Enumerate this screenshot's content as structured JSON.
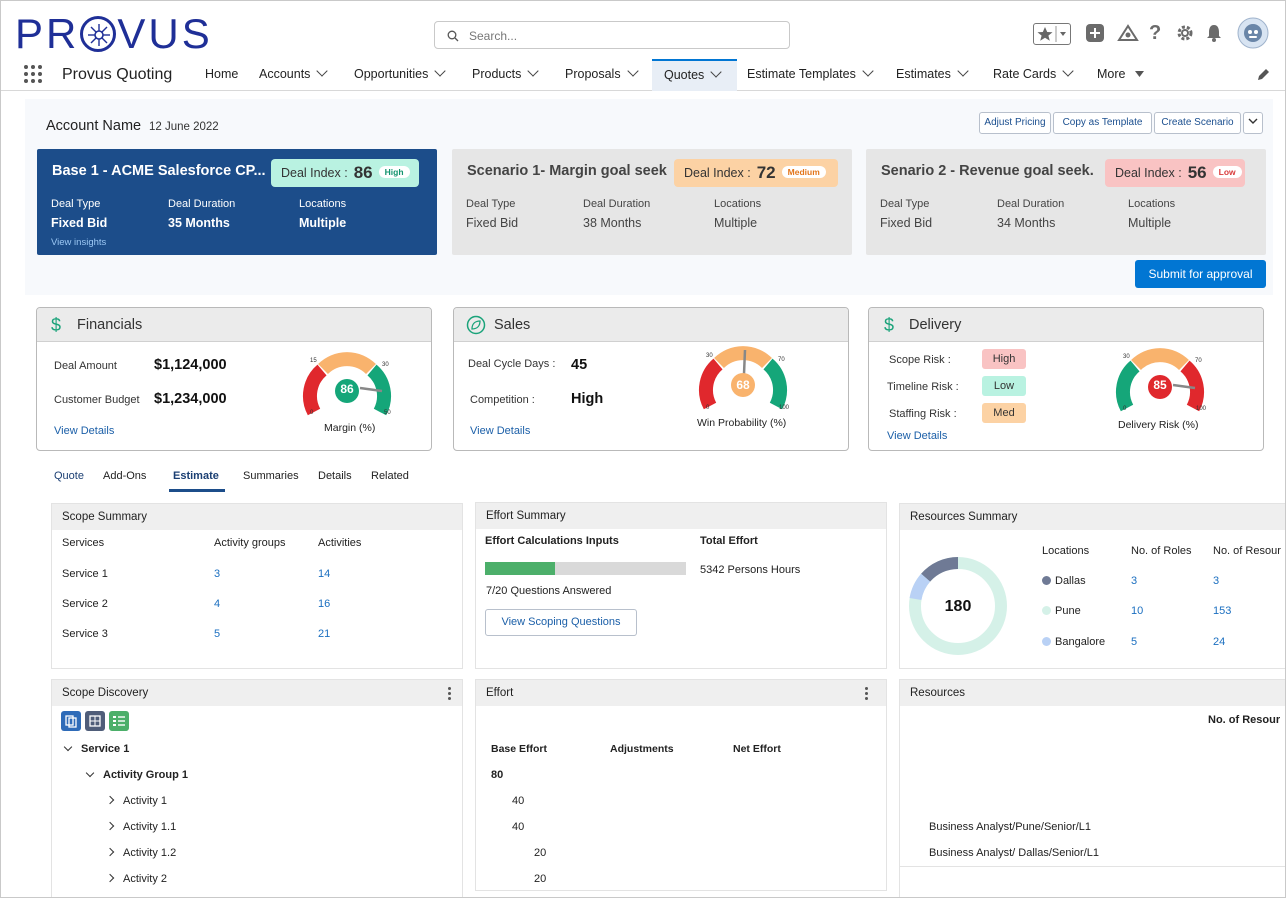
{
  "brand": {
    "logo_text_left": "PR",
    "logo_text_right": "VUS"
  },
  "search": {
    "placeholder": "Search..."
  },
  "nav": {
    "app_name": "Provus Quoting",
    "items": [
      "Home",
      "Accounts",
      "Opportunities",
      "Products",
      "Proposals",
      "Quotes",
      "Estimate Templates",
      "Estimates",
      "Rate Cards",
      "More"
    ],
    "active": "Quotes"
  },
  "account": {
    "title": "Account Name",
    "date": "12 June 2022",
    "buttons": [
      "Adjust Pricing",
      "Copy as Template",
      "Create Scenario"
    ]
  },
  "scenarios": [
    {
      "title": "Base 1 - ACME  Salesforce CP...",
      "deal_label": "Deal Index :",
      "deal_value": "86",
      "deal_tag": "High",
      "deal_type_label": "Deal Type",
      "deal_type": "Fixed Bid",
      "duration_label": "Deal Duration",
      "duration": "35 Months",
      "locations_label": "Locations",
      "locations": "Multiple",
      "link": "View insights"
    },
    {
      "title": "Scenario 1- Margin goal seek",
      "deal_label": "Deal Index :",
      "deal_value": "72",
      "deal_tag": "Medium",
      "deal_type_label": "Deal Type",
      "deal_type": "Fixed Bid",
      "duration_label": "Deal Duration",
      "duration": "38 Months",
      "locations_label": "Locations",
      "locations": "Multiple"
    },
    {
      "title": "Senario 2 - Revenue goal seek.",
      "deal_label": "Deal Index :",
      "deal_value": "56",
      "deal_tag": "Low",
      "deal_type_label": "Deal Type",
      "deal_type": "Fixed Bid",
      "duration_label": "Deal Duration",
      "duration": "34 Months",
      "locations_label": "Locations",
      "locations": "Multiple"
    }
  ],
  "submit_label": "Submit for approval",
  "financials": {
    "title": "Financials",
    "deal_amount_label": "Deal Amount",
    "deal_amount": "$1,124,000",
    "budget_label": "Customer Budget",
    "budget": "$1,234,000",
    "link": "View Details",
    "gauge": {
      "value": "86",
      "caption": "Margin (%)",
      "min": "0",
      "t1": "15",
      "t2": "30",
      "max": "50"
    }
  },
  "sales": {
    "title": "Sales",
    "cycle_label": "Deal Cycle Days :",
    "cycle": "45",
    "competition_label": "Competition :",
    "competition": "High",
    "link": "View Details",
    "gauge": {
      "value": "68",
      "caption": "Win Probability (%)",
      "min": "0",
      "t1": "30",
      "t2": "70",
      "max": "100"
    }
  },
  "delivery": {
    "title": "Delivery",
    "scope_label": "Scope Risk :",
    "scope": "High",
    "timeline_label": "Timeline Risk :",
    "timeline": "Low",
    "staffing_label": "Staffing Risk :",
    "staffing": "Med",
    "link": "View Details",
    "gauge": {
      "value": "85",
      "caption": "Delivery Risk (%)",
      "min": "0",
      "t1": "30",
      "t2": "70",
      "max": "100"
    }
  },
  "tabs": [
    "Quote",
    "Add-Ons",
    "Estimate",
    "Summaries",
    "Details",
    "Related"
  ],
  "active_tab": "Estimate",
  "scope_summary": {
    "title": "Scope Summary",
    "headers": [
      "Services",
      "Activity groups",
      "Activities"
    ],
    "rows": [
      [
        "Service 1",
        "3",
        "14"
      ],
      [
        "Service 2",
        "4",
        "16"
      ],
      [
        "Service 3",
        "5",
        "21"
      ]
    ]
  },
  "effort_summary": {
    "title": "Effort Summary",
    "inputs_label": "Effort Calculations Inputs",
    "progress": 0.35,
    "answered": "7/20 Questions Answered",
    "button": "View Scoping Questions",
    "total_label": "Total Effort",
    "total": "5342 Persons Hours"
  },
  "resources_summary": {
    "title": "Resources Summary",
    "total": "180",
    "headers": [
      "Locations",
      "No. of Roles",
      "No. of Resour"
    ],
    "rows": [
      [
        "Dallas",
        "3",
        "3"
      ],
      [
        "Pune",
        "10",
        "153"
      ],
      [
        "Bangalore",
        "5",
        "24"
      ]
    ],
    "colors": [
      "#6f7a95",
      "#d5f1e8",
      "#b9d1f5"
    ]
  },
  "scope_discovery": {
    "title": "Scope Discovery",
    "tree": [
      {
        "level": 0,
        "label": "Service 1",
        "open": true
      },
      {
        "level": 1,
        "label": "Activity Group 1",
        "open": true
      },
      {
        "level": 2,
        "label": "Activity 1"
      },
      {
        "level": 2,
        "label": "Activity 1.1"
      },
      {
        "level": 2,
        "label": "Activity 1.2"
      },
      {
        "level": 2,
        "label": "Activity 2"
      }
    ]
  },
  "effort": {
    "title": "Effort",
    "headers": [
      "Base Effort",
      "Adjustments",
      "Net Effort"
    ],
    "rows": [
      "80",
      "40",
      "40",
      "20",
      "20"
    ]
  },
  "resources": {
    "title": "Resources",
    "header": "No. of Resour",
    "rows": [
      "Business Analyst/Pune/Senior/L1",
      "Business Analyst/ Dallas/Senior/L1"
    ]
  }
}
